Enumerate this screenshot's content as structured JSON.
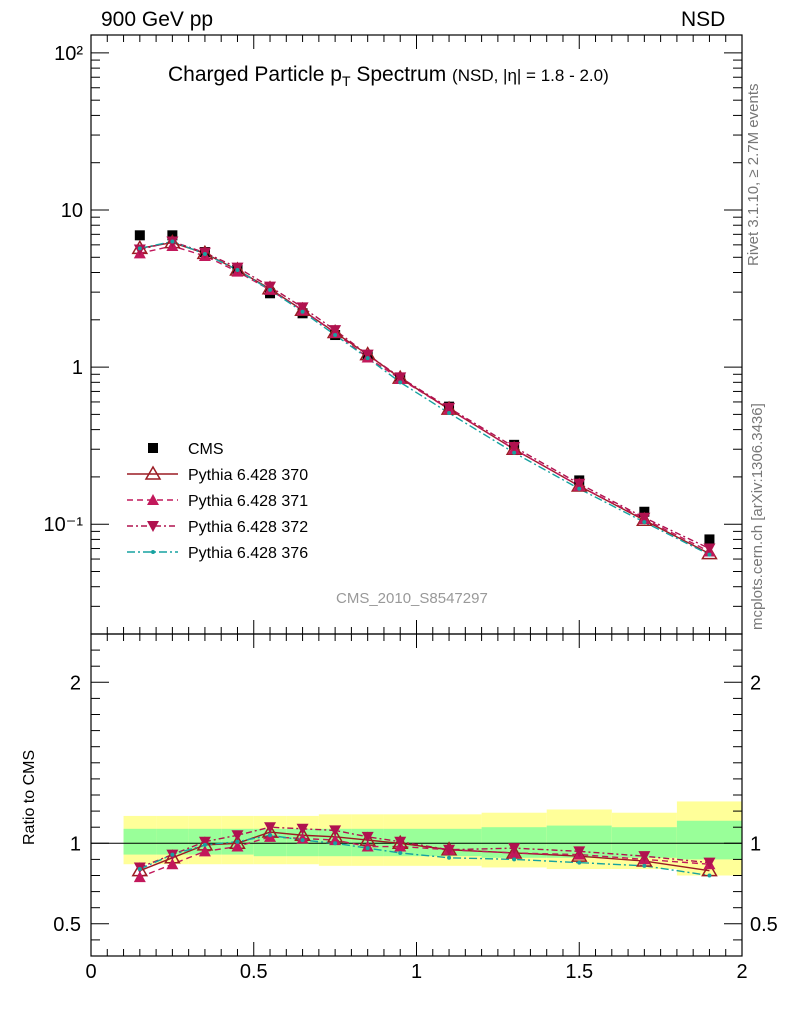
{
  "header": {
    "left": "900 GeV pp",
    "right": "NSD"
  },
  "side_labels": {
    "top": "Rivet 3.1.10, ≥ 2.7M events",
    "bottom": "mcplots.cern.ch [arXiv:1306.3436]"
  },
  "colors": {
    "cms": "#000000",
    "p370": "#9b1c24",
    "p371": "#c2185b",
    "p372": "#b0124f",
    "p376": "#17a2a0",
    "band_inner": "#99ff99",
    "band_outer": "#ffff99"
  },
  "chart_data": [
    {
      "type": "scatter",
      "title": "Charged Particle p",
      "title_sub": "T",
      "title_suffix": " Spectrum",
      "title_extra": "(NSD, |η| = 1.8 - 2.0)",
      "watermark": "CMS_2010_S8547297",
      "xlim": [
        0,
        2
      ],
      "ylim": [
        0.02,
        130
      ],
      "yscale": "log",
      "ytick_labels": [
        "10⁻¹",
        "1",
        "10",
        "10²"
      ],
      "x": [
        0.15,
        0.25,
        0.35,
        0.45,
        0.55,
        0.65,
        0.75,
        0.85,
        0.95,
        1.1,
        1.3,
        1.5,
        1.7,
        1.9
      ],
      "series": [
        {
          "name": "CMS",
          "values": [
            6.9,
            6.9,
            5.4,
            4.2,
            2.95,
            2.2,
            1.6,
            1.17,
            0.85,
            0.56,
            0.32,
            0.19,
            0.12,
            0.08
          ]
        },
        {
          "name": "Pythia 6.428 370",
          "values": [
            5.7,
            6.2,
            5.3,
            4.15,
            3.15,
            2.3,
            1.66,
            1.2,
            0.85,
            0.54,
            0.3,
            0.175,
            0.106,
            0.065
          ]
        },
        {
          "name": "Pythia 6.428 371",
          "values": [
            5.3,
            5.9,
            5.1,
            4.05,
            3.1,
            2.3,
            1.65,
            1.15,
            0.84,
            0.54,
            0.3,
            0.175,
            0.108,
            0.067
          ]
        },
        {
          "name": "Pythia 6.428 372",
          "values": [
            5.6,
            6.3,
            5.35,
            4.3,
            3.25,
            2.4,
            1.72,
            1.2,
            0.86,
            0.55,
            0.31,
            0.181,
            0.11,
            0.07
          ]
        },
        {
          "name": "Pythia 6.428 376",
          "values": [
            5.7,
            6.3,
            5.25,
            4.15,
            3.1,
            2.25,
            1.6,
            1.14,
            0.8,
            0.51,
            0.285,
            0.168,
            0.103,
            0.064
          ]
        }
      ],
      "legend": {
        "entries": [
          "CMS",
          "Pythia 6.428 370",
          "Pythia 6.428 371",
          "Pythia 6.428 372",
          "Pythia 6.428 376"
        ]
      }
    },
    {
      "type": "line",
      "ylabel": "Ratio to CMS",
      "xlim": [
        0,
        2
      ],
      "ylim": [
        0.3,
        2.3
      ],
      "ytick_labels": [
        "0.5",
        "1",
        "2"
      ],
      "xtick_labels": [
        "0",
        "0.5",
        "1",
        "1.5",
        "2"
      ],
      "x": [
        0.15,
        0.25,
        0.35,
        0.45,
        0.55,
        0.65,
        0.75,
        0.85,
        0.95,
        1.1,
        1.3,
        1.5,
        1.7,
        1.9
      ],
      "bins": [
        [
          0.1,
          0.2
        ],
        [
          0.2,
          0.3
        ],
        [
          0.3,
          0.4
        ],
        [
          0.4,
          0.5
        ],
        [
          0.5,
          0.6
        ],
        [
          0.6,
          0.7
        ],
        [
          0.7,
          0.8
        ],
        [
          0.8,
          0.9
        ],
        [
          0.9,
          1.0
        ],
        [
          1.0,
          1.2
        ],
        [
          1.2,
          1.4
        ],
        [
          1.4,
          1.6
        ],
        [
          1.6,
          1.8
        ],
        [
          1.8,
          2.0
        ]
      ],
      "band_inner": [
        [
          0.93,
          1.09
        ],
        [
          0.93,
          1.09
        ],
        [
          0.93,
          1.09
        ],
        [
          0.93,
          1.09
        ],
        [
          0.92,
          1.09
        ],
        [
          0.92,
          1.09
        ],
        [
          0.92,
          1.09
        ],
        [
          0.92,
          1.09
        ],
        [
          0.92,
          1.09
        ],
        [
          0.92,
          1.09
        ],
        [
          0.91,
          1.1
        ],
        [
          0.91,
          1.11
        ],
        [
          0.91,
          1.1
        ],
        [
          0.9,
          1.14
        ]
      ],
      "band_outer": [
        [
          0.87,
          1.17
        ],
        [
          0.87,
          1.17
        ],
        [
          0.87,
          1.17
        ],
        [
          0.87,
          1.17
        ],
        [
          0.87,
          1.17
        ],
        [
          0.87,
          1.17
        ],
        [
          0.86,
          1.18
        ],
        [
          0.86,
          1.18
        ],
        [
          0.86,
          1.18
        ],
        [
          0.86,
          1.18
        ],
        [
          0.85,
          1.19
        ],
        [
          0.84,
          1.21
        ],
        [
          0.84,
          1.19
        ],
        [
          0.8,
          1.26
        ]
      ],
      "series": [
        {
          "name": "Pythia 6.428 370",
          "values": [
            0.83,
            0.91,
            0.99,
            1.0,
            1.07,
            1.05,
            1.04,
            1.02,
            1.0,
            0.96,
            0.94,
            0.92,
            0.89,
            0.83
          ]
        },
        {
          "name": "Pythia 6.428 371",
          "values": [
            0.79,
            0.87,
            0.95,
            0.98,
            1.04,
            1.03,
            1.02,
            0.98,
            0.98,
            0.96,
            0.94,
            0.93,
            0.9,
            0.87
          ]
        },
        {
          "name": "Pythia 6.428 372",
          "values": [
            0.85,
            0.93,
            1.01,
            1.05,
            1.1,
            1.09,
            1.08,
            1.04,
            1.01,
            0.96,
            0.97,
            0.95,
            0.92,
            0.88
          ]
        },
        {
          "name": "Pythia 6.428 376",
          "values": [
            0.84,
            0.93,
            0.99,
            1.01,
            1.05,
            1.02,
            1.0,
            0.97,
            0.94,
            0.91,
            0.9,
            0.88,
            0.86,
            0.8
          ]
        }
      ]
    }
  ]
}
